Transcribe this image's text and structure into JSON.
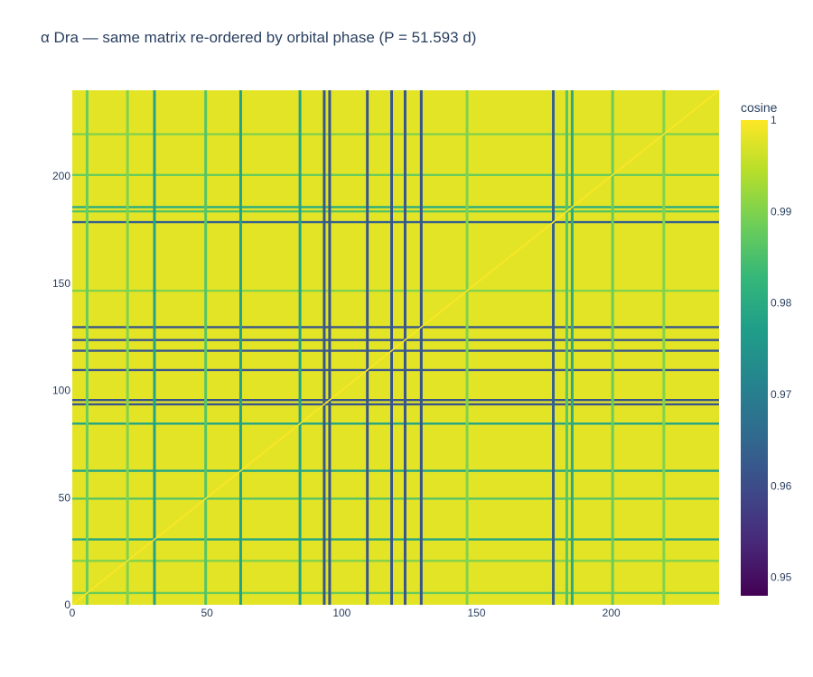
{
  "chart_data": {
    "type": "heatmap",
    "title": "α Dra — same matrix re-ordered by orbital phase (P = 51.593 d)",
    "n": 240,
    "xlim": [
      0,
      240
    ],
    "ylim": [
      0,
      240
    ],
    "x_ticks": [
      0,
      50,
      100,
      150,
      200
    ],
    "y_ticks": [
      0,
      50,
      100,
      150,
      200
    ],
    "colorscale": "Viridis",
    "zlim": [
      0.948,
      1.0
    ],
    "colorbar": {
      "title": "cosine",
      "ticks": [
        1,
        0.99,
        0.98,
        0.97,
        0.96,
        0.95
      ],
      "tick_labels": [
        "1",
        "0.99",
        "0.98",
        "0.97",
        "0.96",
        "0.95"
      ]
    },
    "base_value": 0.998,
    "dark_lines": [
      {
        "index": 93,
        "value": 0.962
      },
      {
        "index": 95,
        "value": 0.962
      },
      {
        "index": 109,
        "value": 0.962
      },
      {
        "index": 118,
        "value": 0.962
      },
      {
        "index": 123,
        "value": 0.962
      },
      {
        "index": 129,
        "value": 0.962
      },
      {
        "index": 178,
        "value": 0.964
      }
    ],
    "medium_lines": [
      {
        "index": 30,
        "value": 0.978
      },
      {
        "index": 62,
        "value": 0.978
      },
      {
        "index": 84,
        "value": 0.978
      },
      {
        "index": 185,
        "value": 0.98
      }
    ],
    "light_lines": [
      {
        "index": 5,
        "value": 0.988
      },
      {
        "index": 20,
        "value": 0.99
      },
      {
        "index": 49,
        "value": 0.986
      },
      {
        "index": 146,
        "value": 0.99
      },
      {
        "index": 183,
        "value": 0.986
      },
      {
        "index": 200,
        "value": 0.988
      },
      {
        "index": 219,
        "value": 0.99
      }
    ]
  }
}
